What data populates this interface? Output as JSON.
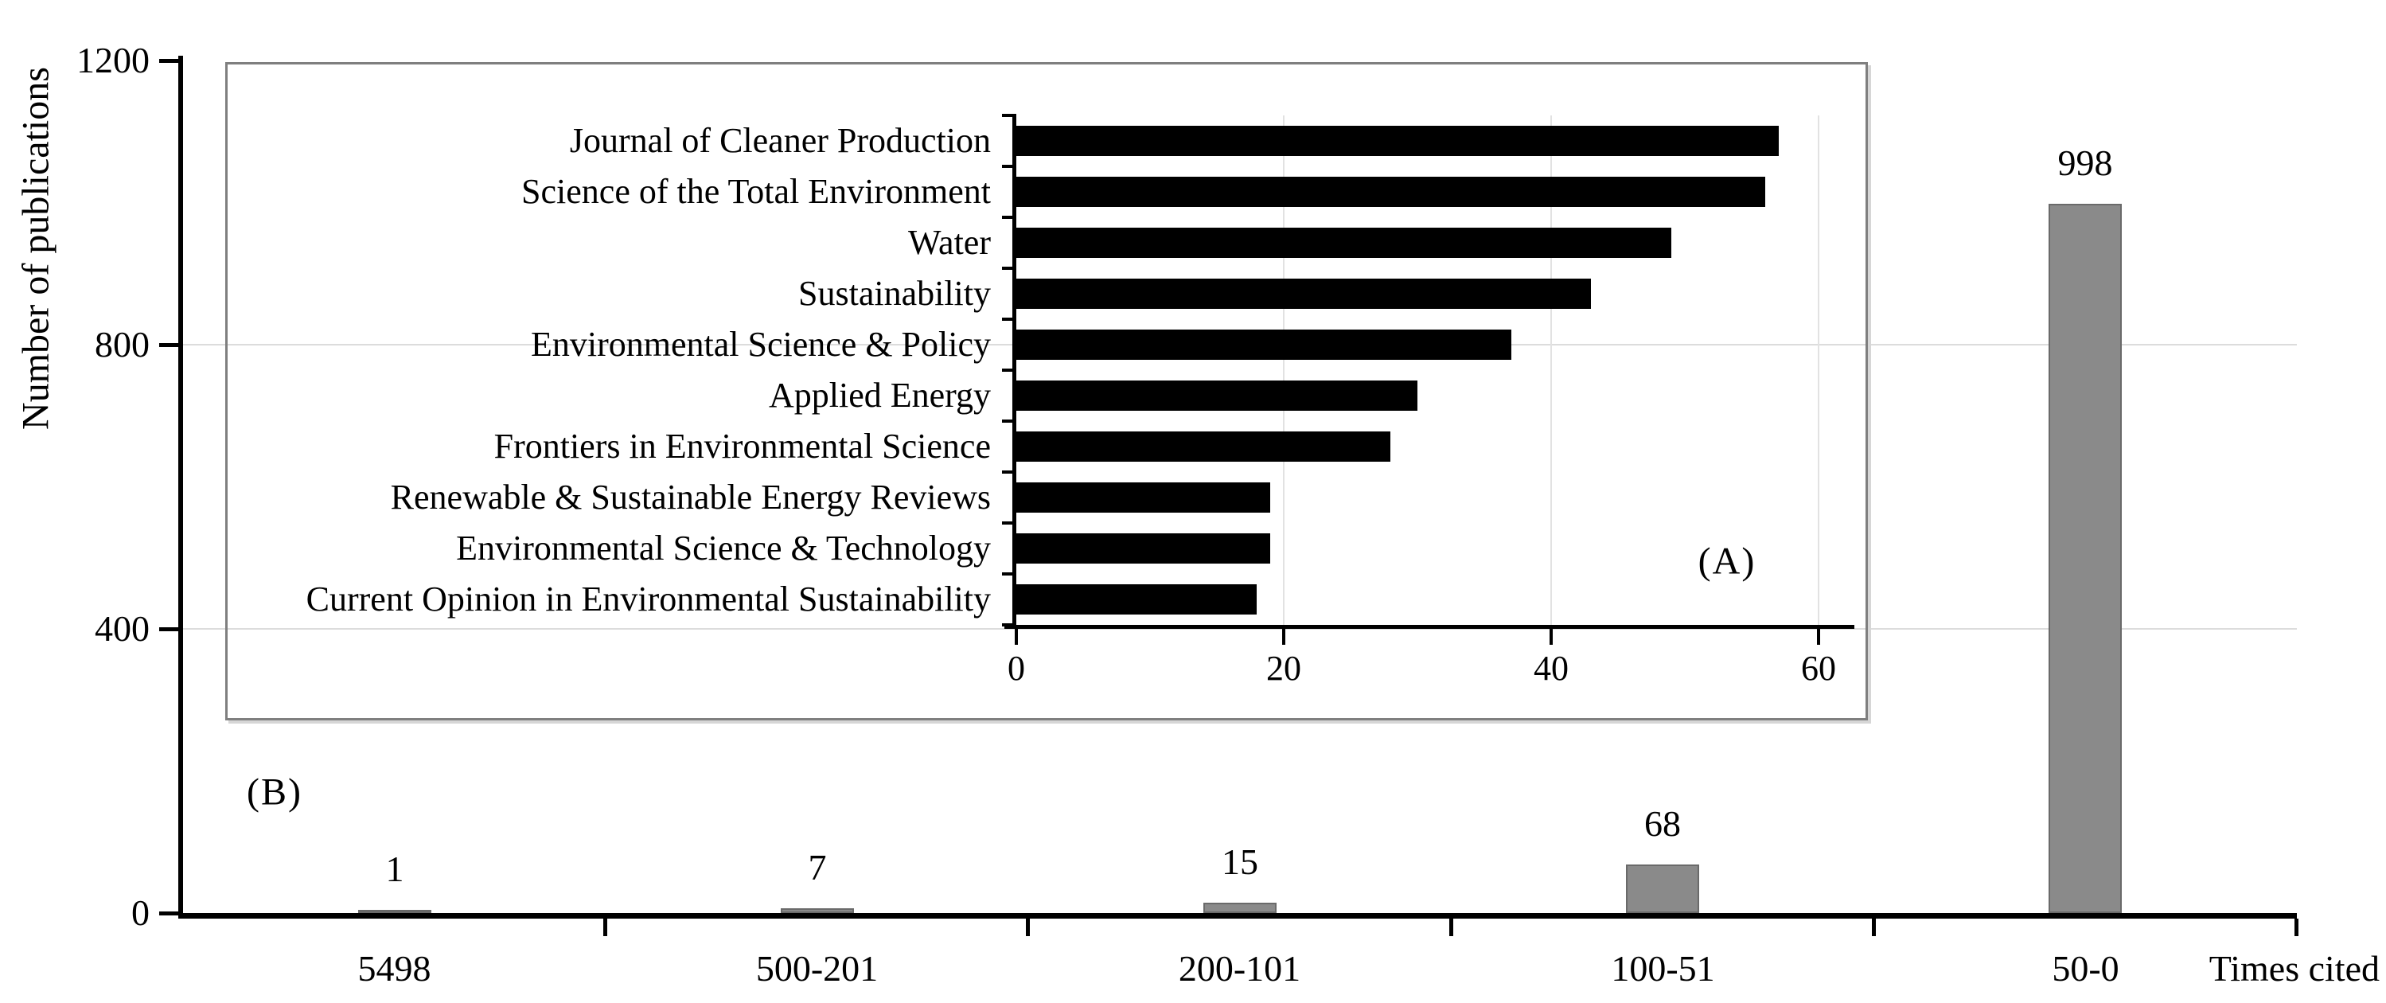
{
  "figure": {
    "y_axis_label": "Number of publications",
    "x_axis_label": "Times cited",
    "panel_a_label": "(A)",
    "panel_b_label": "(B)"
  },
  "chart_data": [
    {
      "id": "citation-distribution",
      "panel": "(B)",
      "type": "bar",
      "orientation": "vertical",
      "title": "",
      "xlabel": "Times cited",
      "ylabel": "Number of publications",
      "categories": [
        "5498",
        "500-201",
        "200-101",
        "100-51",
        "50-0"
      ],
      "values": [
        1,
        7,
        15,
        68,
        998
      ],
      "data_labels": [
        "1",
        "7",
        "15",
        "68",
        "998"
      ],
      "yticks": [
        0,
        400,
        800,
        1200
      ],
      "ylim": [
        0,
        1200
      ],
      "grid": "horizontal",
      "bar_color": "#8a8a8a",
      "bar_border_color": "#6a6a6a",
      "axis_color": "#000000",
      "gridline_color": "#dcdcdc"
    },
    {
      "id": "top-journals",
      "panel": "(A)",
      "type": "bar",
      "orientation": "horizontal",
      "title": "",
      "categories": [
        "Journal of Cleaner Production",
        "Science of the Total Environment",
        "Water",
        "Sustainability",
        "Environmental Science & Policy",
        "Applied Energy",
        "Frontiers in Environmental Science",
        "Renewable & Sustainable Energy Reviews",
        "Environmental Science & Technology",
        "Current Opinion in Environmental Sustainability"
      ],
      "values": [
        57,
        56,
        49,
        43,
        37,
        30,
        28,
        19,
        19,
        18
      ],
      "xticks": [
        0,
        20,
        40,
        60
      ],
      "xlim": [
        0,
        60
      ],
      "grid": "vertical",
      "bar_color": "#000000",
      "axis_color": "#000000",
      "gridline_color": "#e2e2e2"
    }
  ]
}
